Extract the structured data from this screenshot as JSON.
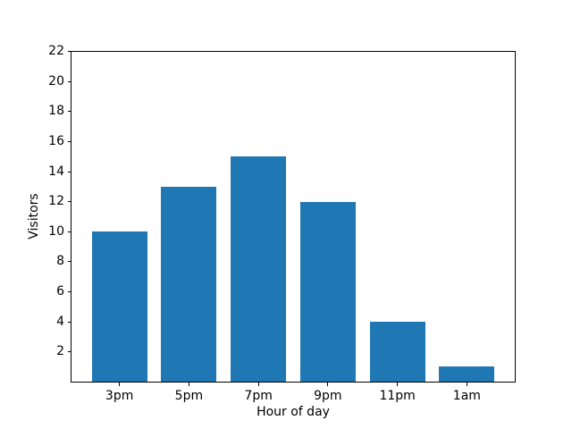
{
  "chart_data": {
    "type": "bar",
    "categories": [
      "3pm",
      "5pm",
      "7pm",
      "9pm",
      "11pm",
      "1am"
    ],
    "values": [
      10,
      13,
      15,
      12,
      4,
      1
    ],
    "title": "",
    "xlabel": "Hour of day",
    "ylabel": "Visitors",
    "ylim": [
      0,
      22
    ],
    "yticks": [
      2,
      4,
      6,
      8,
      10,
      12,
      14,
      16,
      18,
      20,
      22
    ],
    "bar_width_fraction": 0.8,
    "bar_color": "#1f77b4",
    "axis_color": "#000000",
    "text_color": "#000000",
    "background_color": "#ffffff",
    "grid": false,
    "legend": null
  }
}
